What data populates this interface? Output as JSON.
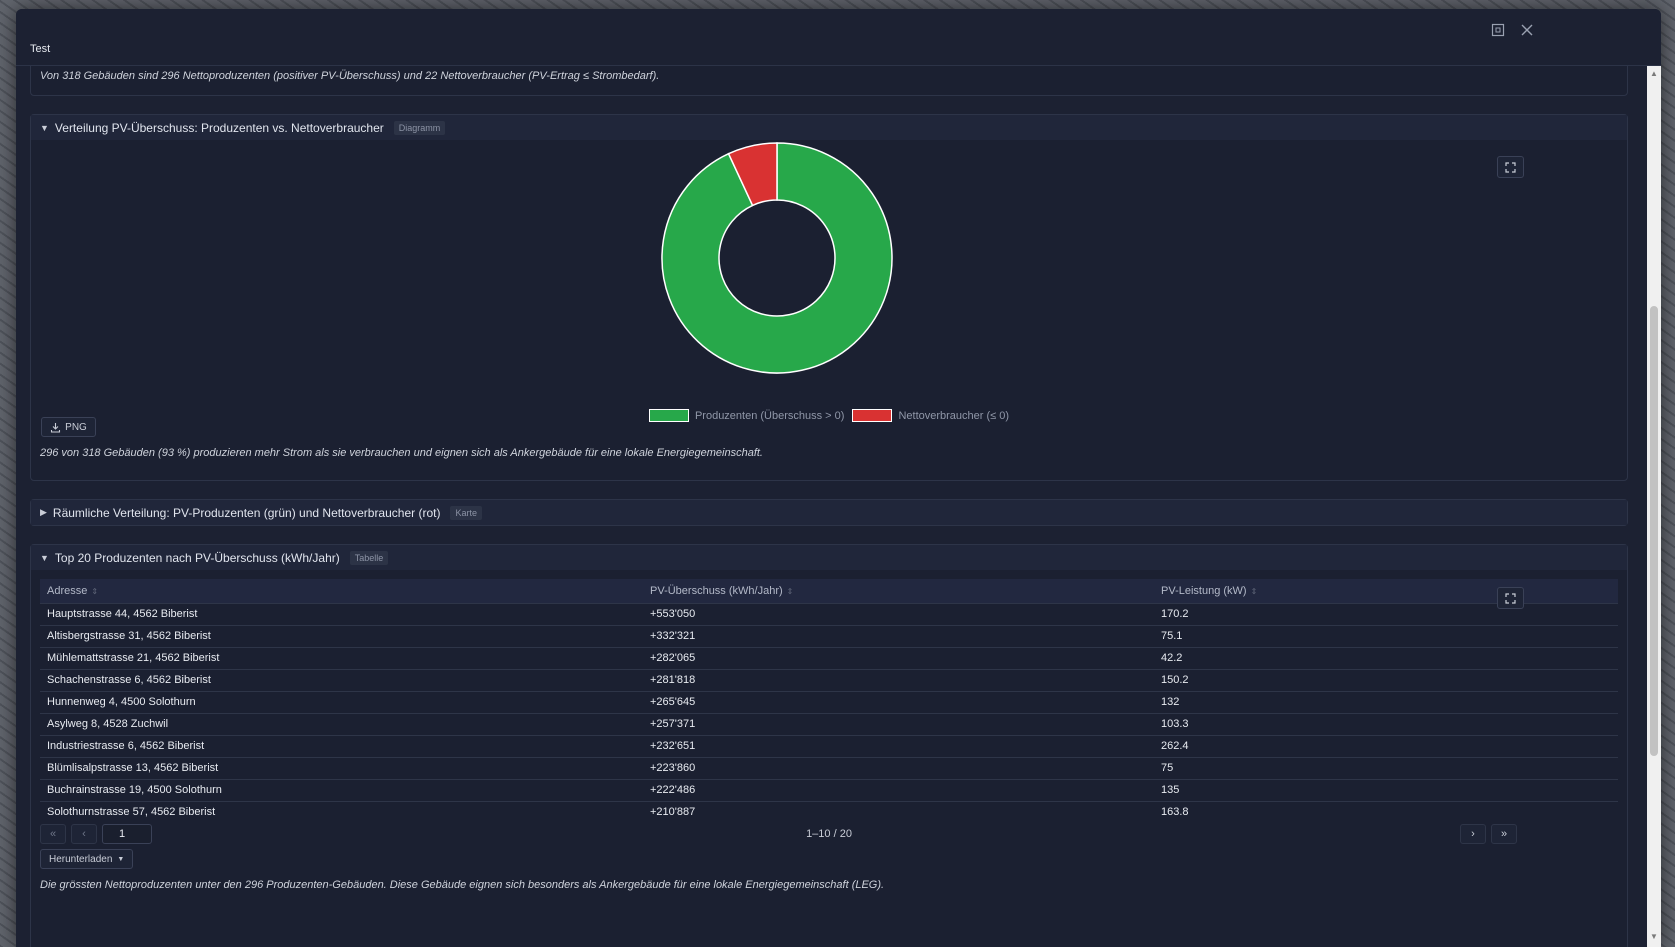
{
  "window": {
    "title": "Test"
  },
  "summary_text": "Von 318 Gebäuden sind 296 Nettoproduzenten (positiver PV-Überschuss) und 22 Nettoverbraucher (PV-Ertrag ≤ Strombedarf).",
  "sections": {
    "chart": {
      "title": "Verteilung PV-Überschuss: Produzenten vs. Nettoverbraucher",
      "badge": "Diagramm",
      "png_label": "PNG",
      "note": "296 von 318 Gebäuden (93 %) produzieren mehr Strom als sie verbrauchen und eignen sich als Ankergebäude für eine lokale Energiegemeinschaft."
    },
    "map": {
      "title": "Räumliche Verteilung: PV-Produzenten (grün) und Nettoverbraucher (rot)",
      "badge": "Karte"
    },
    "table": {
      "title": "Top 20 Produzenten nach PV-Überschuss (kWh/Jahr)",
      "badge": "Tabelle",
      "columns": [
        "Adresse",
        "PV-Überschuss (kWh/Jahr)",
        "PV-Leistung (kW)"
      ],
      "rows": [
        [
          "Hauptstrasse 44, 4562 Biberist",
          "+553'050",
          "170.2"
        ],
        [
          "Altisbergstrasse 31, 4562 Biberist",
          "+332'321",
          "75.1"
        ],
        [
          "Mühlemattstrasse 21, 4562 Biberist",
          "+282'065",
          "42.2"
        ],
        [
          "Schachenstrasse 6, 4562 Biberist",
          "+281'818",
          "150.2"
        ],
        [
          "Hunnenweg 4, 4500 Solothurn",
          "+265'645",
          "132"
        ],
        [
          "Asylweg 8, 4528 Zuchwil",
          "+257'371",
          "103.3"
        ],
        [
          "Industriestrasse 6, 4562 Biberist",
          "+232'651",
          "262.4"
        ],
        [
          "Blümlisalpstrasse 13, 4562 Biberist",
          "+223'860",
          "75"
        ],
        [
          "Buchrainstrasse 19, 4500 Solothurn",
          "+222'486",
          "135"
        ],
        [
          "Solothurnstrasse 57, 4562 Biberist",
          "+210'887",
          "163.8"
        ]
      ],
      "pagination": {
        "first": "«",
        "prev": "‹",
        "next": "›",
        "last": "»",
        "page": "1",
        "info": "1–10 / 20"
      },
      "download_label": "Herunterladen",
      "footer_note": "Die grössten Nettoproduzenten unter den 296 Produzenten-Gebäuden. Diese Gebäude eignen sich besonders als Ankergebäude für eine lokale Energiegemeinschaft (LEG)."
    }
  },
  "chart_data": {
    "type": "pie",
    "donut": true,
    "categories": [
      "Produzenten (Überschuss > 0)",
      "Nettoverbraucher (≤ 0)"
    ],
    "values": [
      296,
      22
    ],
    "colors": [
      "#27a84a",
      "#d93232"
    ],
    "legend_position": "bottom"
  },
  "colors": {
    "accent_green": "#27a84a",
    "accent_red": "#d93232",
    "background": "#1c2132"
  },
  "icons": {
    "maximize": "maximize-icon",
    "close": "close-icon",
    "expand": "expand-icon",
    "download": "download-icon"
  }
}
